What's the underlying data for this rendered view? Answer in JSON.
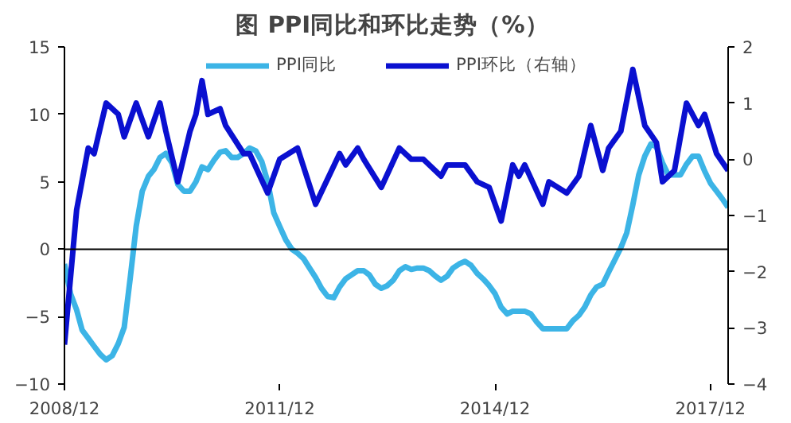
{
  "chart_data": {
    "type": "line",
    "title": "图  PPI同比和环比走势（%）",
    "xlim": [
      "2008-12",
      "2018-03"
    ],
    "xticks": [
      {
        "value": "2008-12",
        "label": "2008/12"
      },
      {
        "value": "2011-12",
        "label": "2011/12"
      },
      {
        "value": "2014-12",
        "label": "2014/12"
      },
      {
        "value": "2017-12",
        "label": "2017/12"
      }
    ],
    "ylim": [
      -10,
      15
    ],
    "yticks": [
      -10,
      -5,
      0,
      5,
      10,
      15
    ],
    "y2lim": [
      -4,
      2
    ],
    "y2ticks": [
      -4,
      -3,
      -2,
      -1,
      0,
      1,
      2
    ],
    "grid": false,
    "legend": "top",
    "line_style": "solid",
    "marker": "none",
    "ref_lines": [
      {
        "axis": "y",
        "value": 0,
        "color": "#000000"
      }
    ],
    "series": [
      {
        "name": "PPI同比",
        "color": "#3cb4e6",
        "x": [
          "2008-12",
          "2009-01",
          "2009-02",
          "2009-03",
          "2009-04",
          "2009-05",
          "2009-06",
          "2009-07",
          "2009-08",
          "2009-09",
          "2009-10",
          "2009-11",
          "2009-12",
          "2010-01",
          "2010-02",
          "2010-03",
          "2010-04",
          "2010-05",
          "2010-06",
          "2010-07",
          "2010-08",
          "2010-09",
          "2010-10",
          "2010-11",
          "2010-12",
          "2011-01",
          "2011-02",
          "2011-03",
          "2011-04",
          "2011-05",
          "2011-06",
          "2011-07",
          "2011-08",
          "2011-09",
          "2011-10",
          "2011-11",
          "2011-12",
          "2012-01",
          "2012-02",
          "2012-03",
          "2012-04",
          "2012-05",
          "2012-06",
          "2012-07",
          "2012-08",
          "2012-09",
          "2012-10",
          "2012-11",
          "2012-12",
          "2013-01",
          "2013-02",
          "2013-03",
          "2013-04",
          "2013-05",
          "2013-06",
          "2013-07",
          "2013-08",
          "2013-09",
          "2013-10",
          "2013-11",
          "2013-12",
          "2014-01",
          "2014-02",
          "2014-03",
          "2014-04",
          "2014-05",
          "2014-06",
          "2014-07",
          "2014-08",
          "2014-09",
          "2014-10",
          "2014-11",
          "2014-12",
          "2015-01",
          "2015-02",
          "2015-03",
          "2015-04",
          "2015-05",
          "2015-06",
          "2015-07",
          "2015-08",
          "2015-09",
          "2015-10",
          "2015-11",
          "2015-12",
          "2016-01",
          "2016-02",
          "2016-03",
          "2016-04",
          "2016-05",
          "2016-06",
          "2016-07",
          "2016-08",
          "2016-09",
          "2016-10",
          "2016-11",
          "2016-12",
          "2017-01",
          "2017-02",
          "2017-03",
          "2017-04",
          "2017-05",
          "2017-06",
          "2017-07",
          "2017-08",
          "2017-09",
          "2017-10",
          "2017-11",
          "2017-12",
          "2018-01",
          "2018-02",
          "2018-03"
        ],
        "values": [
          -1.1,
          -3.3,
          -4.5,
          -6.0,
          -6.6,
          -7.2,
          -7.8,
          -8.2,
          -7.9,
          -7.0,
          -5.8,
          -2.1,
          1.7,
          4.3,
          5.4,
          5.9,
          6.8,
          7.1,
          6.4,
          4.8,
          4.3,
          4.3,
          5.0,
          6.1,
          5.9,
          6.6,
          7.2,
          7.3,
          6.8,
          6.8,
          7.1,
          7.5,
          7.3,
          6.5,
          5.0,
          2.7,
          1.7,
          0.7,
          0.0,
          -0.3,
          -0.7,
          -1.4,
          -2.1,
          -2.9,
          -3.5,
          -3.6,
          -2.8,
          -2.2,
          -1.9,
          -1.6,
          -1.6,
          -1.9,
          -2.6,
          -2.9,
          -2.7,
          -2.3,
          -1.6,
          -1.3,
          -1.5,
          -1.4,
          -1.4,
          -1.6,
          -2.0,
          -2.3,
          -2.0,
          -1.4,
          -1.1,
          -0.9,
          -1.2,
          -1.8,
          -2.2,
          -2.7,
          -3.3,
          -4.3,
          -4.8,
          -4.6,
          -4.6,
          -4.6,
          -4.8,
          -5.4,
          -5.9,
          -5.9,
          -5.9,
          -5.9,
          -5.9,
          -5.3,
          -4.9,
          -4.3,
          -3.4,
          -2.8,
          -2.6,
          -1.7,
          -0.8,
          0.1,
          1.2,
          3.3,
          5.5,
          6.9,
          7.8,
          7.6,
          6.4,
          5.5,
          5.5,
          5.5,
          6.3,
          6.9,
          6.9,
          5.8,
          4.9,
          4.3,
          3.7,
          3.1
        ]
      },
      {
        "name": "PPI环比（右轴）",
        "color": "#0a10d0",
        "axis": "y2",
        "x": [
          "2008-12",
          "2009-02",
          "2009-04",
          "2009-05",
          "2009-07",
          "2009-09",
          "2009-10",
          "2009-12",
          "2010-02",
          "2010-04",
          "2010-05",
          "2010-07",
          "2010-09",
          "2010-10",
          "2010-11",
          "2010-12",
          "2011-02",
          "2011-03",
          "2011-06",
          "2011-07",
          "2011-10",
          "2011-12",
          "2012-03",
          "2012-06",
          "2012-10",
          "2012-11",
          "2013-01",
          "2013-02",
          "2013-05",
          "2013-08",
          "2013-10",
          "2013-12",
          "2014-03",
          "2014-04",
          "2014-07",
          "2014-09",
          "2014-11",
          "2015-01",
          "2015-03",
          "2015-04",
          "2015-05",
          "2015-08",
          "2015-09",
          "2015-12",
          "2016-02",
          "2016-04",
          "2016-06",
          "2016-07",
          "2016-09",
          "2016-11",
          "2017-01",
          "2017-03",
          "2017-04",
          "2017-06",
          "2017-08",
          "2017-10",
          "2017-11",
          "2018-01",
          "2018-03"
        ],
        "values": [
          -3.3,
          -0.9,
          0.2,
          0.1,
          1.0,
          0.8,
          0.4,
          1.0,
          0.4,
          1.0,
          0.5,
          -0.4,
          0.5,
          0.8,
          1.4,
          0.8,
          0.9,
          0.6,
          0.1,
          0.1,
          -0.6,
          0.0,
          0.2,
          -0.8,
          0.1,
          -0.1,
          0.2,
          0.0,
          -0.5,
          0.2,
          0.0,
          0.0,
          -0.3,
          -0.1,
          -0.1,
          -0.4,
          -0.5,
          -1.1,
          -0.1,
          -0.3,
          -0.1,
          -0.8,
          -0.4,
          -0.6,
          -0.3,
          0.6,
          -0.2,
          0.2,
          0.5,
          1.6,
          0.6,
          0.3,
          -0.4,
          -0.2,
          1.0,
          0.6,
          0.8,
          0.1,
          -0.2
        ]
      }
    ]
  }
}
